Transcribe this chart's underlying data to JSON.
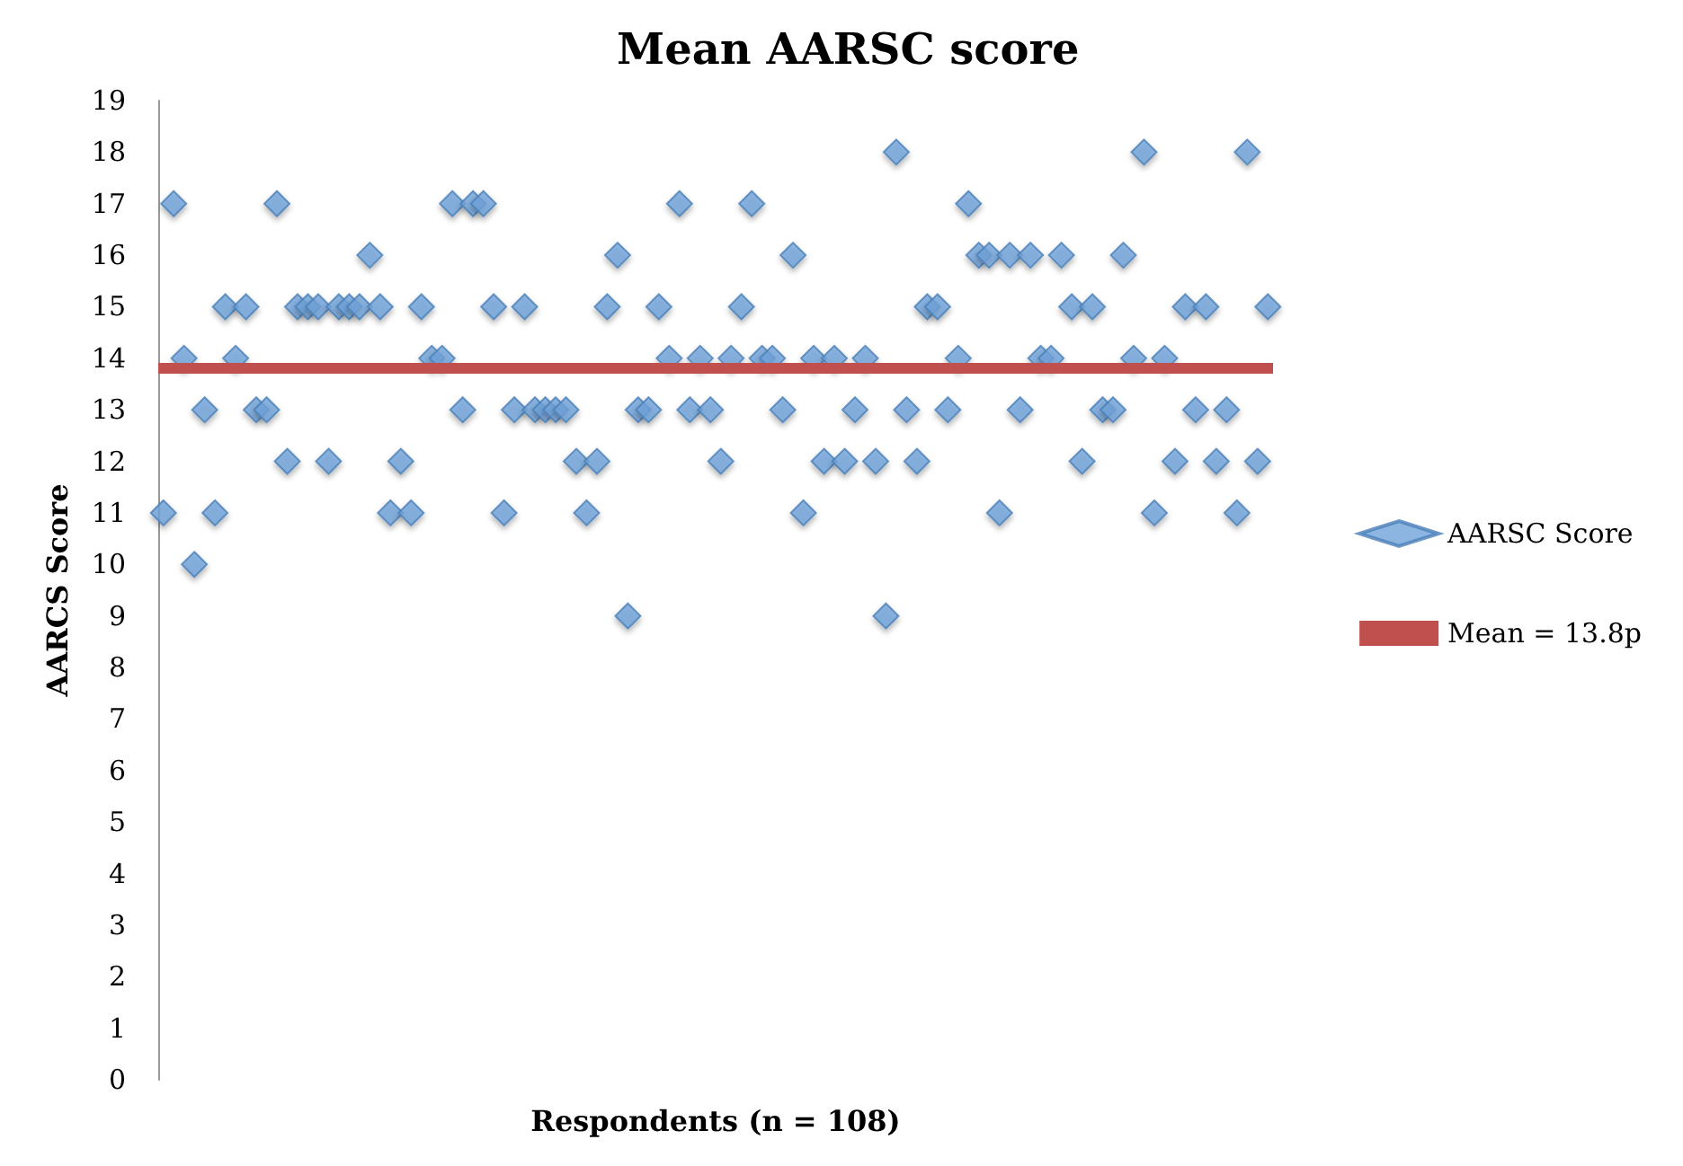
{
  "chart_data": {
    "type": "scatter",
    "title": "Mean AARSC score",
    "xlabel": "Respondents (n = 108)",
    "ylabel": "AARCS Score",
    "categories": [
      null,
      null,
      null,
      null,
      null,
      null,
      null,
      null,
      null,
      null,
      null,
      null,
      null,
      null,
      null,
      null,
      null,
      null,
      null,
      null,
      null,
      null,
      null,
      null,
      null,
      null,
      null,
      null,
      null,
      null,
      null,
      null,
      null,
      null,
      null,
      null,
      null,
      null,
      null,
      null,
      null,
      null,
      null,
      null,
      null,
      null,
      null,
      null,
      null,
      null,
      null,
      null,
      null,
      null,
      null,
      null,
      null,
      null,
      null,
      null,
      null,
      null,
      null,
      null,
      null,
      null,
      null,
      null,
      null,
      null,
      null,
      null,
      null,
      null,
      null,
      null,
      null,
      null,
      null,
      null,
      null,
      null,
      null,
      null,
      null,
      null,
      null,
      null,
      null,
      null,
      null,
      null,
      null,
      null,
      null,
      null,
      null,
      null,
      null,
      null,
      null,
      null,
      null,
      null,
      null,
      null,
      null,
      null
    ],
    "series": [
      {
        "name": "AARSC Score",
        "color": "#6fa3da",
        "values": [
          11,
          17,
          14,
          10,
          13,
          11,
          15,
          14,
          15,
          13,
          13,
          17,
          12,
          15,
          15,
          15,
          12,
          15,
          15,
          15,
          16,
          15,
          11,
          12,
          11,
          15,
          14,
          14,
          17,
          13,
          17,
          17,
          15,
          11,
          13,
          15,
          13,
          13,
          13,
          13,
          12,
          11,
          12,
          15,
          16,
          9,
          13,
          13,
          15,
          14,
          17,
          13,
          14,
          13,
          12,
          14,
          15,
          17,
          14,
          14,
          13,
          16,
          11,
          14,
          12,
          14,
          12,
          13,
          14,
          12,
          9,
          18,
          13,
          12,
          15,
          15,
          13,
          14,
          17,
          16,
          16,
          11,
          16,
          13,
          16,
          14,
          14,
          16,
          15,
          12,
          15,
          13,
          13,
          16,
          14,
          18,
          11,
          14,
          12,
          15,
          13,
          15,
          12,
          13,
          11,
          18,
          12,
          15
        ]
      }
    ],
    "ref_lines": [
      {
        "axis": "y",
        "value": 13.8,
        "label": "Mean = 13.8p",
        "color": "#c0504d"
      }
    ],
    "ylim": [
      0,
      19
    ],
    "yticks": [
      0,
      1,
      2,
      3,
      4,
      5,
      6,
      7,
      8,
      9,
      10,
      11,
      12,
      13,
      14,
      15,
      16,
      17,
      18,
      19
    ],
    "marker": "diamond",
    "legend": "right",
    "grid": false,
    "tick_labels": "y"
  }
}
